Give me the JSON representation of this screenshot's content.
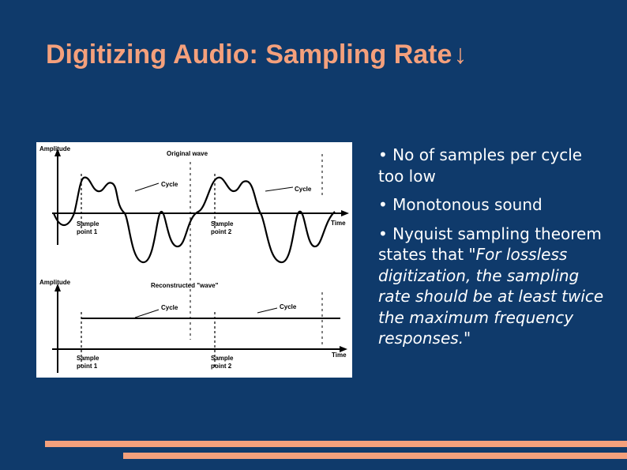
{
  "slide": {
    "title": "Digitizing Audio: Sampling Rate",
    "title_arrow": "↓",
    "colors": {
      "background": "#0f3a6b",
      "accent": "#f4a07c",
      "text": "#ffffff"
    }
  },
  "figure": {
    "top": {
      "amplitude_label": "Amplitude",
      "wave_label": "Original wave",
      "cycle_label_1": "Cycle",
      "cycle_label_2": "Cycle",
      "time_label": "Time",
      "sample1_line1": "Sample",
      "sample1_line2": "point 1",
      "sample2_line1": "Sample",
      "sample2_line2": "point 2"
    },
    "bottom": {
      "amplitude_label": "Amplitude",
      "wave_label": "Reconstructed \"wave\"",
      "cycle_label_1": "Cycle",
      "cycle_label_2": "Cycle",
      "time_label": "Time",
      "sample1_line1": "Sample",
      "sample1_line2": "point 1",
      "sample2_line1": "Sample",
      "sample2_line2": "point 2"
    }
  },
  "bullets": {
    "b1": "• No of samples per cycle too low",
    "b2": "• Monotonous sound",
    "b3_prefix": "• Nyquist sampling theorem states that \"",
    "b3_quote": "For lossless digitization, the sampling rate should be at least twice the maximum frequency responses.\""
  }
}
